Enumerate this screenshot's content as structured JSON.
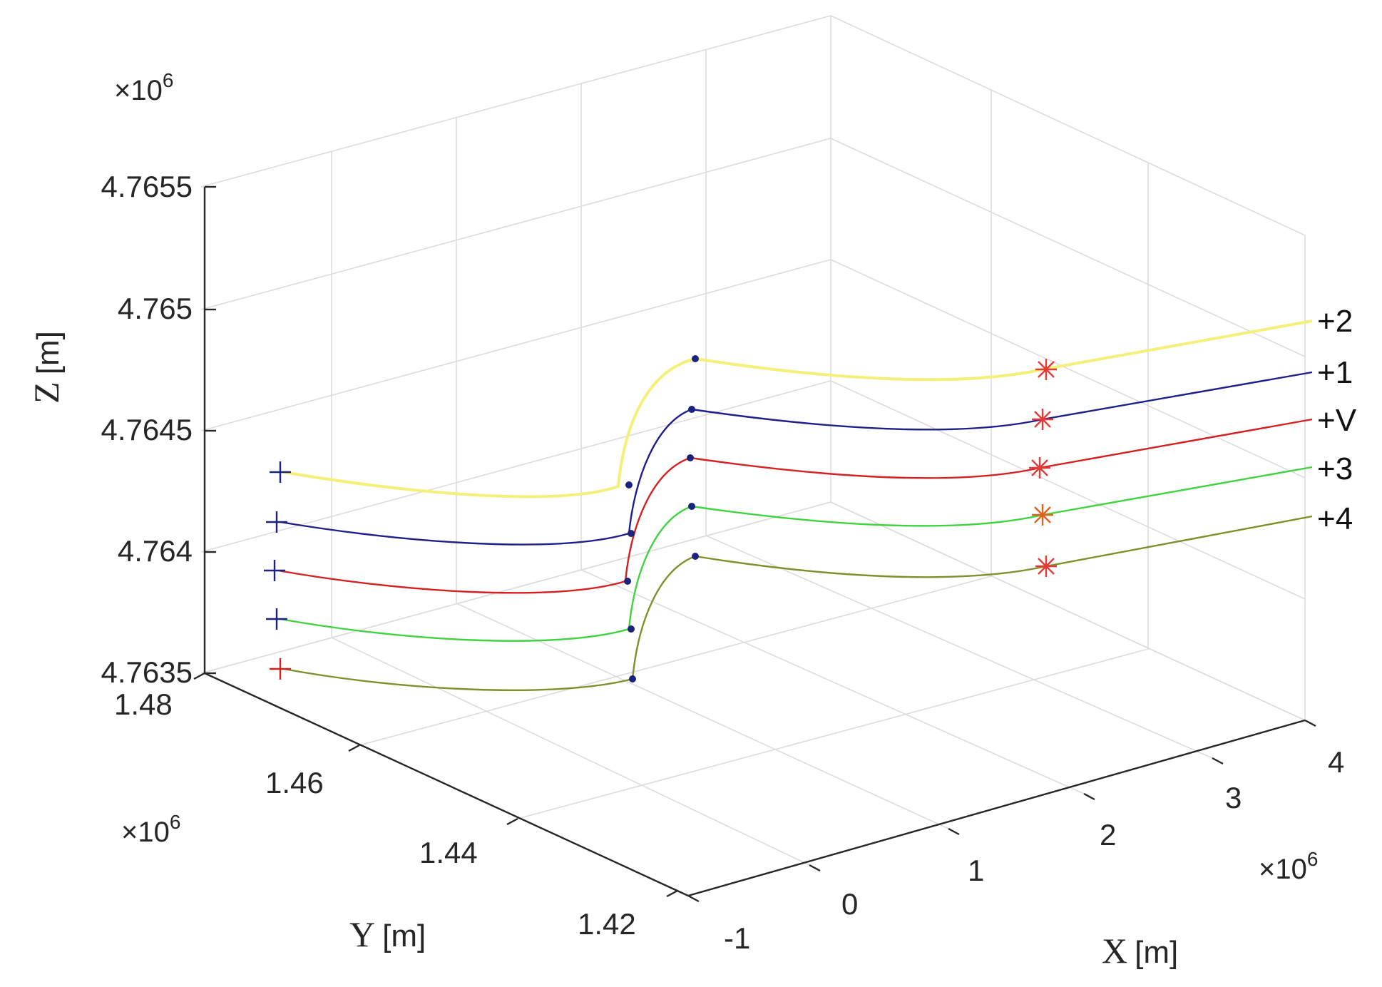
{
  "chart_data": {
    "type": "line3d",
    "title": "",
    "xlabel": "X",
    "xunit": "[m]",
    "ylabel": "Y",
    "yunit": "[m]",
    "zlabel": "Z",
    "zunit": "[m]",
    "x_ticks": [
      "-1",
      "0",
      "1",
      "2",
      "3",
      "4"
    ],
    "x_multiplier": "×10",
    "x_multiplier_exp": "6",
    "y_ticks": [
      "1.48",
      "1.46",
      "1.44",
      "1.42"
    ],
    "y_multiplier": "×10",
    "y_multiplier_exp": "6",
    "z_ticks": [
      "4.7655",
      "4.765",
      "4.7645",
      "4.764",
      "4.7635"
    ],
    "z_multiplier": "×10",
    "z_multiplier_exp": "6",
    "grid": true,
    "series": [
      {
        "label": "+2",
        "color": "#f5f07a",
        "start_marker_color": "#1a237e",
        "mid_marker_color": "#1a237e",
        "end_marker_color": "#e53935"
      },
      {
        "label": "+1",
        "color": "#1e1e8c",
        "start_marker_color": "#1a237e",
        "mid_marker_color": "#1a237e",
        "end_marker_color": "#e53935"
      },
      {
        "label": "+V",
        "color": "#d62020",
        "start_marker_color": "#1a237e",
        "mid_marker_color": "#1a237e",
        "end_marker_color": "#e53935"
      },
      {
        "label": "+3",
        "color": "#3fd43f",
        "start_marker_color": "#1a237e",
        "mid_marker_color": "#1a237e",
        "end_marker_color": "#e2611b"
      },
      {
        "label": "+4",
        "color": "#7f8f2a",
        "start_marker_color": "#d62020",
        "mid_marker_color": "#1a237e",
        "end_marker_color": "#e53935"
      }
    ]
  }
}
